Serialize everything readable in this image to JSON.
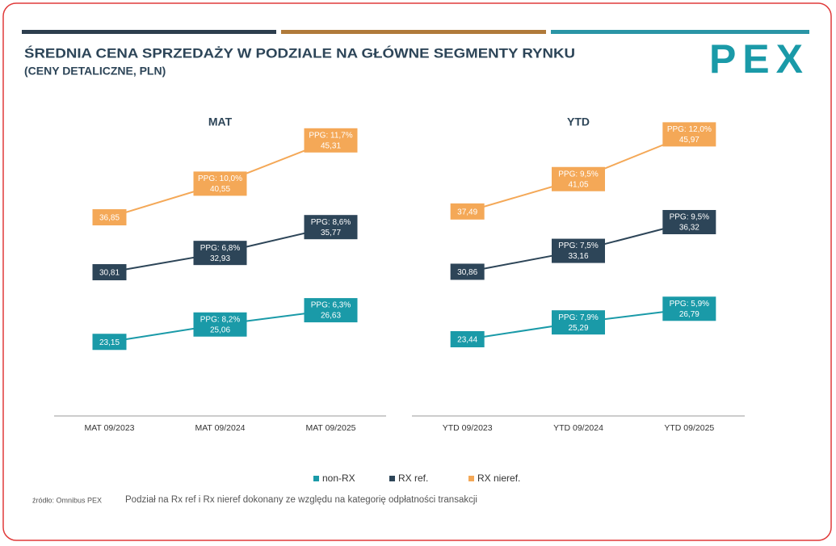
{
  "header": {
    "title": "ŚREDNIA CENA SPRZEDAŻY W PODZIALE NA GŁÓWNE SEGMENTY RYNKU",
    "subtitle": "(CENY DETALICZNE, PLN)",
    "logo": "PEX"
  },
  "chart_data": [
    {
      "type": "line",
      "title": "MAT",
      "categories": [
        "MAT 09/2023",
        "MAT 09/2024",
        "MAT 09/2025"
      ],
      "ylim": [
        15,
        50
      ],
      "series": [
        {
          "name": "non-RX",
          "color": "#1a9aa8",
          "values": [
            23.15,
            25.06,
            26.63
          ],
          "value_labels": [
            "23,15",
            "25,06",
            "26,63"
          ],
          "ppg_labels": [
            null,
            "PPG: 8,2%",
            "PPG: 6,3%"
          ]
        },
        {
          "name": "RX ref.",
          "color": "#2d4558",
          "values": [
            30.81,
            32.93,
            35.77
          ],
          "value_labels": [
            "30,81",
            "32,93",
            "35,77"
          ],
          "ppg_labels": [
            null,
            "PPG: 6,8%",
            "PPG: 8,6%"
          ]
        },
        {
          "name": "RX nieref.",
          "color": "#f4a857",
          "values": [
            36.85,
            40.55,
            45.31
          ],
          "value_labels": [
            "36,85",
            "40,55",
            "45,31"
          ],
          "ppg_labels": [
            null,
            "PPG: 10,0%",
            "PPG: 11,7%"
          ]
        }
      ]
    },
    {
      "type": "line",
      "title": "YTD",
      "categories": [
        "YTD 09/2023",
        "YTD 09/2024",
        "YTD 09/2025"
      ],
      "ylim": [
        15,
        50
      ],
      "series": [
        {
          "name": "non-RX",
          "color": "#1a9aa8",
          "values": [
            23.44,
            25.29,
            26.79
          ],
          "value_labels": [
            "23,44",
            "25,29",
            "26,79"
          ],
          "ppg_labels": [
            null,
            "PPG: 7,9%",
            "PPG: 5,9%"
          ]
        },
        {
          "name": "RX ref.",
          "color": "#2d4558",
          "values": [
            30.86,
            33.16,
            36.32
          ],
          "value_labels": [
            "30,86",
            "33,16",
            "36,32"
          ],
          "ppg_labels": [
            null,
            "PPG: 7,5%",
            "PPG: 9,5%"
          ]
        },
        {
          "name": "RX nieref.",
          "color": "#f4a857",
          "values": [
            37.49,
            41.05,
            45.97
          ],
          "value_labels": [
            "37,49",
            "41,05",
            "45,97"
          ],
          "ppg_labels": [
            null,
            "PPG: 9,5%",
            "PPG: 12,0%"
          ]
        }
      ]
    }
  ],
  "footer": {
    "source": "źródło: Omnibus PEX",
    "note": "Podział na Rx ref i Rx nieref dokonany ze względu na kategorię odpłatności transakcji"
  }
}
